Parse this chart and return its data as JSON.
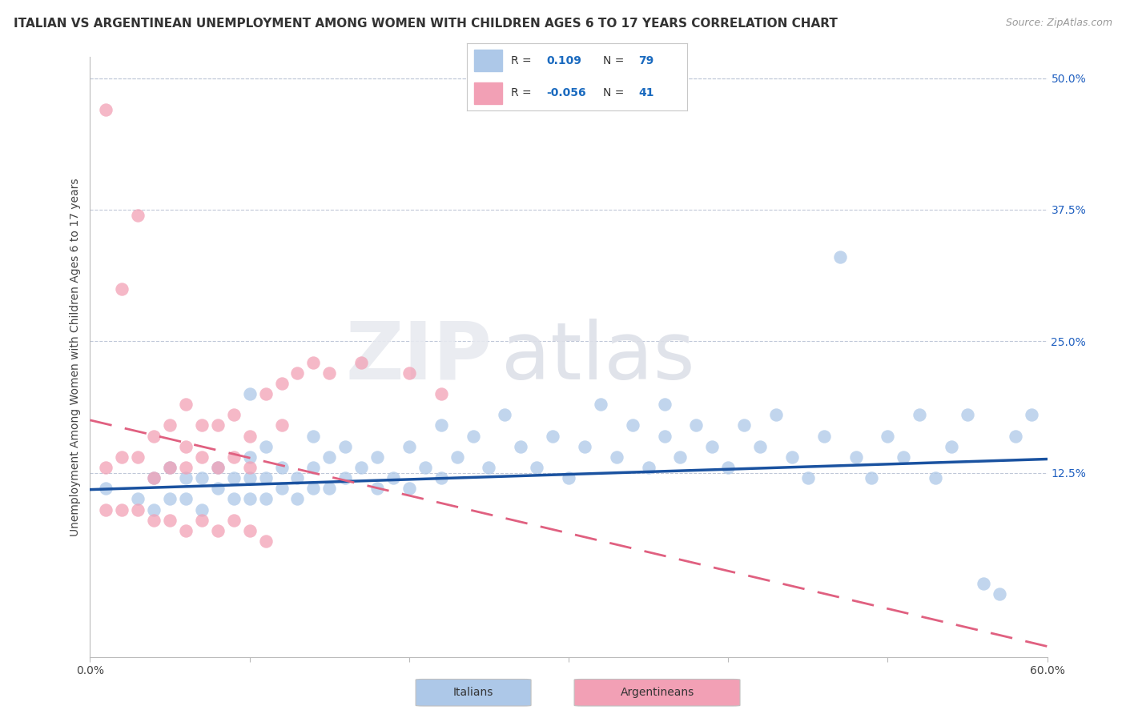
{
  "title": "ITALIAN VS ARGENTINEAN UNEMPLOYMENT AMONG WOMEN WITH CHILDREN AGES 6 TO 17 YEARS CORRELATION CHART",
  "source": "Source: ZipAtlas.com",
  "ylabel": "Unemployment Among Women with Children Ages 6 to 17 years",
  "xlim": [
    0.0,
    0.6
  ],
  "ylim": [
    -0.05,
    0.52
  ],
  "ytick_right_labels": [
    "50.0%",
    "37.5%",
    "25.0%",
    "12.5%"
  ],
  "ytick_right_values": [
    0.5,
    0.375,
    0.25,
    0.125
  ],
  "r_italian": "0.109",
  "n_italian": "79",
  "r_argentinean": "-0.056",
  "n_argentinean": "41",
  "italian_color": "#adc8e8",
  "argentinean_color": "#f2a0b5",
  "italian_line_color": "#1a52a0",
  "argentinean_line_color": "#e06080",
  "grid_color": "#c0c8d8",
  "background_color": "#ffffff",
  "title_fontsize": 11,
  "label_fontsize": 10,
  "tick_fontsize": 10,
  "italian_trend_x0": 0.0,
  "italian_trend_y0": 0.109,
  "italian_trend_x1": 0.6,
  "italian_trend_y1": 0.138,
  "argentinean_trend_x0": 0.0,
  "argentinean_trend_y0": 0.175,
  "argentinean_trend_x1": 0.6,
  "argentinean_trend_y1": -0.04,
  "italians_x": [
    0.01,
    0.03,
    0.04,
    0.04,
    0.05,
    0.05,
    0.06,
    0.06,
    0.07,
    0.07,
    0.08,
    0.08,
    0.09,
    0.09,
    0.1,
    0.1,
    0.1,
    0.11,
    0.11,
    0.11,
    0.12,
    0.12,
    0.13,
    0.13,
    0.14,
    0.14,
    0.14,
    0.15,
    0.15,
    0.16,
    0.16,
    0.17,
    0.18,
    0.18,
    0.19,
    0.2,
    0.2,
    0.21,
    0.22,
    0.22,
    0.23,
    0.24,
    0.25,
    0.26,
    0.27,
    0.28,
    0.29,
    0.3,
    0.31,
    0.32,
    0.33,
    0.34,
    0.35,
    0.36,
    0.37,
    0.38,
    0.39,
    0.4,
    0.41,
    0.42,
    0.43,
    0.44,
    0.45,
    0.46,
    0.47,
    0.48,
    0.49,
    0.5,
    0.51,
    0.52,
    0.53,
    0.54,
    0.55,
    0.56,
    0.57,
    0.58,
    0.59,
    0.1,
    0.36
  ],
  "italians_y": [
    0.11,
    0.1,
    0.12,
    0.09,
    0.1,
    0.13,
    0.1,
    0.12,
    0.09,
    0.12,
    0.11,
    0.13,
    0.1,
    0.12,
    0.1,
    0.12,
    0.14,
    0.1,
    0.12,
    0.15,
    0.11,
    0.13,
    0.1,
    0.12,
    0.11,
    0.13,
    0.16,
    0.11,
    0.14,
    0.12,
    0.15,
    0.13,
    0.11,
    0.14,
    0.12,
    0.11,
    0.15,
    0.13,
    0.12,
    0.17,
    0.14,
    0.16,
    0.13,
    0.18,
    0.15,
    0.13,
    0.16,
    0.12,
    0.15,
    0.19,
    0.14,
    0.17,
    0.13,
    0.16,
    0.14,
    0.17,
    0.15,
    0.13,
    0.17,
    0.15,
    0.18,
    0.14,
    0.12,
    0.16,
    0.33,
    0.14,
    0.12,
    0.16,
    0.14,
    0.18,
    0.12,
    0.15,
    0.18,
    0.02,
    0.01,
    0.16,
    0.18,
    0.2,
    0.19
  ],
  "argentineans_x": [
    0.01,
    0.01,
    0.02,
    0.02,
    0.03,
    0.03,
    0.04,
    0.04,
    0.05,
    0.05,
    0.06,
    0.06,
    0.06,
    0.07,
    0.07,
    0.08,
    0.08,
    0.09,
    0.09,
    0.1,
    0.1,
    0.11,
    0.12,
    0.12,
    0.13,
    0.14,
    0.15,
    0.17,
    0.2,
    0.22,
    0.09,
    0.04,
    0.05,
    0.06,
    0.07,
    0.08,
    0.1,
    0.11,
    0.03,
    0.02,
    0.01
  ],
  "argentineans_y": [
    0.13,
    0.09,
    0.09,
    0.14,
    0.09,
    0.14,
    0.12,
    0.16,
    0.13,
    0.17,
    0.13,
    0.15,
    0.19,
    0.14,
    0.17,
    0.13,
    0.17,
    0.14,
    0.18,
    0.13,
    0.16,
    0.2,
    0.17,
    0.21,
    0.22,
    0.23,
    0.22,
    0.23,
    0.22,
    0.2,
    0.08,
    0.08,
    0.08,
    0.07,
    0.08,
    0.07,
    0.07,
    0.06,
    0.37,
    0.3,
    0.47
  ]
}
